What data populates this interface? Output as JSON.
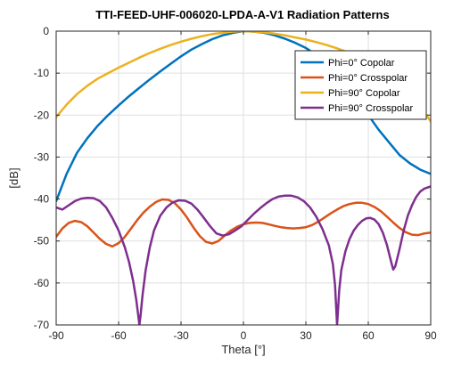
{
  "chart_data": {
    "type": "line",
    "title": "TTI-FEED-UHF-006020-LPDA-A-V1 Radiation Patterns",
    "xlabel": "Theta [°]",
    "ylabel": "[dB]",
    "xlim": [
      -90,
      90
    ],
    "ylim": [
      -70,
      0
    ],
    "xticks": [
      -90,
      -60,
      -30,
      0,
      30,
      60,
      90
    ],
    "yticks": [
      0,
      -10,
      -20,
      -30,
      -40,
      -50,
      -60,
      -70
    ],
    "xtick_labels": [
      "-90",
      "-60",
      "-30",
      "0",
      "30",
      "60",
      "90"
    ],
    "ytick_labels": [
      "0",
      "-10",
      "-20",
      "-30",
      "-40",
      "-50",
      "-60",
      "-70"
    ],
    "grid": true,
    "legend_position": "top-right",
    "series": [
      {
        "name": "Phi=0° Copolar",
        "color": "#0072BD",
        "x": [
          -90,
          -85,
          -80,
          -75,
          -70,
          -65,
          -60,
          -55,
          -50,
          -45,
          -40,
          -35,
          -30,
          -25,
          -20,
          -15,
          -10,
          -5,
          0,
          5,
          10,
          15,
          20,
          25,
          30,
          35,
          40,
          45,
          50,
          55,
          60,
          65,
          70,
          75,
          80,
          85,
          90
        ],
        "y": [
          -40.5,
          -34,
          -29,
          -25.5,
          -22.5,
          -20,
          -17.7,
          -15.5,
          -13.5,
          -11.5,
          -9.6,
          -7.8,
          -6,
          -4.4,
          -3.1,
          -1.9,
          -1,
          -0.4,
          0,
          -0.1,
          -0.4,
          -1,
          -1.8,
          -2.8,
          -4,
          -5.6,
          -7.6,
          -10,
          -13,
          -16.5,
          -20,
          -23.5,
          -26.5,
          -29.5,
          -31.5,
          -33,
          -34
        ]
      },
      {
        "name": "Phi=0° Crosspolar",
        "color": "#D95319",
        "x": [
          -90,
          -87,
          -84,
          -81,
          -78,
          -75,
          -72,
          -69,
          -66,
          -63,
          -60,
          -57,
          -54,
          -51,
          -48,
          -45,
          -42,
          -39,
          -36,
          -33,
          -30,
          -27,
          -24,
          -21,
          -18,
          -15,
          -12,
          -9,
          -6,
          -3,
          0,
          3,
          6,
          9,
          12,
          15,
          18,
          21,
          24,
          27,
          30,
          33,
          36,
          39,
          42,
          45,
          48,
          51,
          54,
          57,
          60,
          63,
          66,
          69,
          72,
          75,
          78,
          81,
          84,
          87,
          90
        ],
        "y": [
          -49,
          -47,
          -45.7,
          -45.2,
          -45.5,
          -46.5,
          -48,
          -49.5,
          -50.7,
          -51.3,
          -50.5,
          -49,
          -47,
          -45,
          -43.2,
          -41.8,
          -40.7,
          -40.1,
          -40.2,
          -41,
          -42.5,
          -44.5,
          -46.8,
          -48.8,
          -50.2,
          -50.6,
          -50,
          -48.7,
          -47.5,
          -46.6,
          -46,
          -45.7,
          -45.6,
          -45.7,
          -46,
          -46.4,
          -46.7,
          -46.9,
          -47,
          -46.9,
          -46.7,
          -46.2,
          -45.4,
          -44.4,
          -43.4,
          -42.5,
          -41.7,
          -41.2,
          -40.9,
          -40.9,
          -41.2,
          -41.9,
          -42.9,
          -44.2,
          -45.6,
          -46.9,
          -47.9,
          -48.5,
          -48.6,
          -48.2,
          -48
        ]
      },
      {
        "name": "Phi=90° Copolar",
        "color": "#EDB120",
        "x": [
          -90,
          -85,
          -80,
          -75,
          -70,
          -65,
          -60,
          -55,
          -50,
          -45,
          -40,
          -35,
          -30,
          -25,
          -20,
          -15,
          -10,
          -5,
          0,
          5,
          10,
          15,
          20,
          25,
          30,
          35,
          40,
          45,
          50,
          55,
          60,
          65,
          70,
          75,
          80,
          85,
          90
        ],
        "y": [
          -20.5,
          -17.5,
          -15,
          -13,
          -11.3,
          -10,
          -8.7,
          -7.5,
          -6.3,
          -5.2,
          -4.2,
          -3.3,
          -2.5,
          -1.8,
          -1.2,
          -0.7,
          -0.4,
          -0.1,
          0,
          -0.1,
          -0.3,
          -0.6,
          -1,
          -1.5,
          -2,
          -2.6,
          -3.3,
          -4.1,
          -5,
          -6,
          -7.2,
          -8.6,
          -10.2,
          -12.2,
          -14.7,
          -17.8,
          -21.5
        ]
      },
      {
        "name": "Phi=90° Crosspolar",
        "color": "#7E2F8E",
        "x": [
          -90,
          -87,
          -84,
          -81,
          -78,
          -75,
          -72,
          -69,
          -66,
          -63,
          -60,
          -57,
          -55,
          -53,
          -51.5,
          -50.5,
          -50,
          -49.5,
          -48.5,
          -47,
          -45,
          -43,
          -40,
          -37,
          -34,
          -31,
          -28,
          -25,
          -22,
          -19,
          -16,
          -13,
          -10,
          -7,
          -4,
          -1,
          2,
          5,
          8,
          11,
          14,
          17,
          20,
          23,
          26,
          29,
          32,
          35,
          38,
          41,
          43,
          44,
          44.5,
          45,
          45.5,
          46,
          47,
          49,
          51,
          53,
          55,
          57,
          59,
          61,
          63,
          65,
          67,
          69,
          71,
          72,
          73,
          75,
          77,
          79,
          81,
          83,
          85,
          87,
          90
        ],
        "y": [
          -42,
          -42.5,
          -41.5,
          -40.5,
          -39.9,
          -39.7,
          -39.8,
          -40.5,
          -42,
          -44.5,
          -47.5,
          -51.5,
          -55,
          -59.5,
          -64,
          -68,
          -70,
          -68,
          -63,
          -57,
          -51.5,
          -47.5,
          -44,
          -42,
          -40.8,
          -40.3,
          -40.4,
          -41.1,
          -42.6,
          -44.5,
          -46.5,
          -48.2,
          -48.7,
          -48.4,
          -47.5,
          -46.5,
          -45,
          -43.5,
          -42.2,
          -41,
          -40,
          -39.4,
          -39.2,
          -39.2,
          -39.6,
          -40.5,
          -42,
          -44.2,
          -47.2,
          -51,
          -55.5,
          -60.5,
          -65,
          -70,
          -66,
          -62,
          -57,
          -52.5,
          -49.5,
          -47.5,
          -46.2,
          -45.2,
          -44.6,
          -44.5,
          -44.9,
          -46,
          -48,
          -51,
          -55,
          -56.8,
          -56,
          -52,
          -47.5,
          -44,
          -41.5,
          -39.5,
          -38.2,
          -37.5,
          -37
        ]
      }
    ]
  }
}
